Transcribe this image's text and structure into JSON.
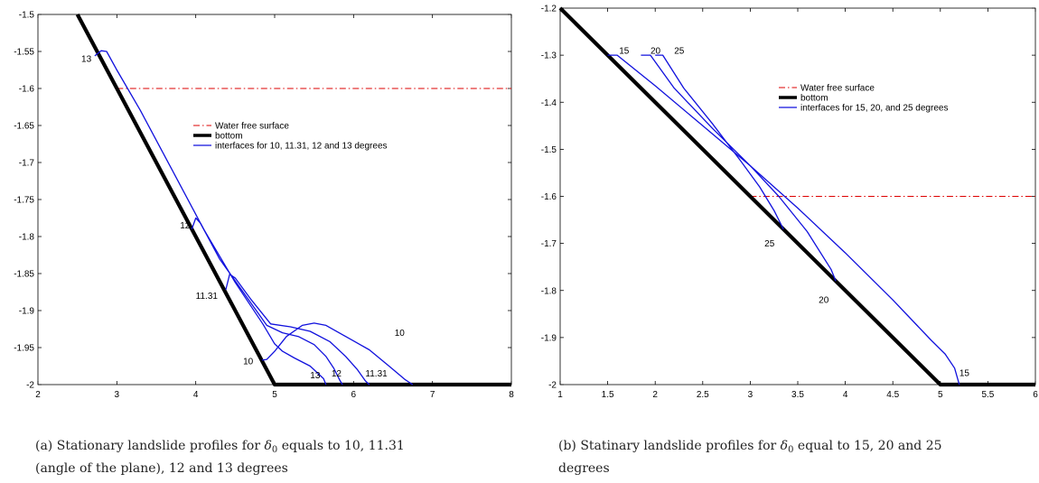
{
  "chart_data": [
    {
      "type": "line",
      "panel": "a",
      "xlim": [
        2,
        8
      ],
      "ylim": [
        -2,
        -1.5
      ],
      "xticks": [
        "2",
        "3",
        "4",
        "5",
        "6",
        "7",
        "8"
      ],
      "yticks": [
        "-1.5",
        "-1.55",
        "-1.6",
        "-1.65",
        "-1.7",
        "-1.75",
        "-1.8",
        "-1.85",
        "-1.9",
        "-1.95",
        "-2"
      ],
      "legend": {
        "position": "center-right",
        "entries": [
          "Water free surface",
          "bottom",
          "interfaces for 10, 11.31, 12 and 13 degrees"
        ]
      },
      "series": [
        {
          "name": "Water free surface",
          "color": "#dd0000",
          "style": "dashdot",
          "x": [
            3,
            8
          ],
          "y": [
            -1.6,
            -1.6
          ]
        },
        {
          "name": "bottom",
          "color": "#000000",
          "style": "solid",
          "x": [
            2.5,
            5,
            8
          ],
          "y": [
            -1.5,
            -2,
            -2
          ]
        },
        {
          "label": "13",
          "color": "#1010dd",
          "style": "solid",
          "x": [
            2.72,
            2.8,
            2.87,
            3.0,
            3.3,
            3.7,
            4.1,
            4.5,
            4.85,
            5.0,
            5.1,
            5.25,
            5.45,
            5.62,
            5.65
          ],
          "y": [
            -1.556,
            -1.549,
            -1.55,
            -1.575,
            -1.63,
            -1.71,
            -1.79,
            -1.862,
            -1.918,
            -1.945,
            -1.955,
            -1.964,
            -1.975,
            -1.992,
            -2.0
          ]
        },
        {
          "label": "12",
          "color": "#1010dd",
          "style": "solid",
          "x": [
            3.95,
            4.0,
            4.06,
            4.3,
            4.6,
            4.9,
            5.1,
            5.3,
            5.5,
            5.65,
            5.75,
            5.83,
            5.86
          ],
          "y": [
            -1.79,
            -1.775,
            -1.782,
            -1.83,
            -1.875,
            -1.92,
            -1.93,
            -1.935,
            -1.946,
            -1.962,
            -1.978,
            -1.995,
            -2.0
          ]
        },
        {
          "label": "11.31",
          "color": "#1010dd",
          "style": "solid",
          "x": [
            4.38,
            4.43,
            4.5,
            4.7,
            4.95,
            5.2,
            5.45,
            5.7,
            5.9,
            6.05,
            6.15,
            6.2
          ],
          "y": [
            -1.872,
            -1.851,
            -1.856,
            -1.885,
            -1.918,
            -1.922,
            -1.928,
            -1.942,
            -1.962,
            -1.98,
            -1.995,
            -2.0
          ]
        },
        {
          "label": "10",
          "color": "#1010dd",
          "style": "solid",
          "x": [
            4.84,
            4.9,
            5.0,
            5.15,
            5.35,
            5.5,
            5.65,
            5.9,
            6.2,
            6.45,
            6.65,
            6.75
          ],
          "y": [
            -1.967,
            -1.966,
            -1.955,
            -1.935,
            -1.92,
            -1.917,
            -1.92,
            -1.935,
            -1.953,
            -1.975,
            -1.993,
            -2.0
          ]
        }
      ],
      "annotations": [
        {
          "text": "13",
          "x": 2.55,
          "y": -1.56
        },
        {
          "text": "12",
          "x": 3.8,
          "y": -1.785
        },
        {
          "text": "11.31",
          "x": 4.0,
          "y": -1.88
        },
        {
          "text": "10",
          "x": 4.6,
          "y": -1.968
        },
        {
          "text": "13",
          "x": 5.45,
          "y": -1.987
        },
        {
          "text": "12",
          "x": 5.72,
          "y": -1.985
        },
        {
          "text": "11.31",
          "x": 6.15,
          "y": -1.985
        },
        {
          "text": "10",
          "x": 6.52,
          "y": -1.93
        }
      ]
    },
    {
      "type": "line",
      "panel": "b",
      "xlim": [
        1,
        6
      ],
      "ylim": [
        -2,
        -1.2
      ],
      "xticks": [
        "1",
        "1.5",
        "2",
        "2.5",
        "3",
        "3.5",
        "4",
        "4.5",
        "5",
        "5.5",
        "6"
      ],
      "yticks": [
        "-1.2",
        "-1.3",
        "-1.4",
        "-1.5",
        "-1.6",
        "-1.7",
        "-1.8",
        "-1.9",
        "-2"
      ],
      "legend": {
        "position": "center-right",
        "entries": [
          "Water free surface",
          "bottom",
          "interfaces for 15, 20, and 25 degrees"
        ]
      },
      "series": [
        {
          "name": "Water free surface",
          "color": "#dd0000",
          "style": "dashdot",
          "x": [
            3,
            6
          ],
          "y": [
            -1.6,
            -1.6
          ]
        },
        {
          "name": "bottom",
          "color": "#000000",
          "style": "solid",
          "x": [
            1,
            5,
            6
          ],
          "y": [
            -1.2,
            -2,
            -2
          ]
        },
        {
          "label": "15",
          "color": "#1010dd",
          "style": "solid",
          "x": [
            1.5,
            1.6,
            2.0,
            2.5,
            3.0,
            3.5,
            4.0,
            4.5,
            4.9,
            5.05,
            5.15,
            5.2
          ],
          "y": [
            -1.3,
            -1.3,
            -1.365,
            -1.45,
            -1.535,
            -1.625,
            -1.72,
            -1.82,
            -1.905,
            -1.935,
            -1.965,
            -2.0
          ]
        },
        {
          "label": "20",
          "color": "#1010dd",
          "style": "solid",
          "x": [
            1.85,
            1.95,
            2.2,
            2.6,
            3.0,
            3.3,
            3.6,
            3.85,
            3.9
          ],
          "y": [
            -1.3,
            -1.3,
            -1.37,
            -1.455,
            -1.535,
            -1.6,
            -1.675,
            -1.755,
            -1.78
          ]
        },
        {
          "label": "25",
          "color": "#1010dd",
          "style": "solid",
          "x": [
            2.0,
            2.08,
            2.3,
            2.6,
            2.9,
            3.1,
            3.25,
            3.35
          ],
          "y": [
            -1.3,
            -1.3,
            -1.37,
            -1.445,
            -1.525,
            -1.58,
            -1.63,
            -1.67
          ]
        }
      ],
      "annotations": [
        {
          "text": "15",
          "x": 1.62,
          "y": -1.29
        },
        {
          "text": "20",
          "x": 1.95,
          "y": -1.29
        },
        {
          "text": "25",
          "x": 2.2,
          "y": -1.29
        },
        {
          "text": "25",
          "x": 3.15,
          "y": -1.7
        },
        {
          "text": "20",
          "x": 3.72,
          "y": -1.82
        },
        {
          "text": "15",
          "x": 5.2,
          "y": -1.975
        }
      ]
    }
  ],
  "captions": {
    "a": {
      "label": "(a)",
      "prefix": "Stationary landslide profiles for",
      "symbol": "δ",
      "subscript": "0",
      "suffix": "equals to 10, 11.31 (angle of the plane), 12 and 13 degrees"
    },
    "b": {
      "label": "(b)",
      "prefix": "Statinary landslide profiles for",
      "symbol": "δ",
      "subscript": "0",
      "suffix": "equal to 15, 20 and 25 degrees"
    }
  }
}
